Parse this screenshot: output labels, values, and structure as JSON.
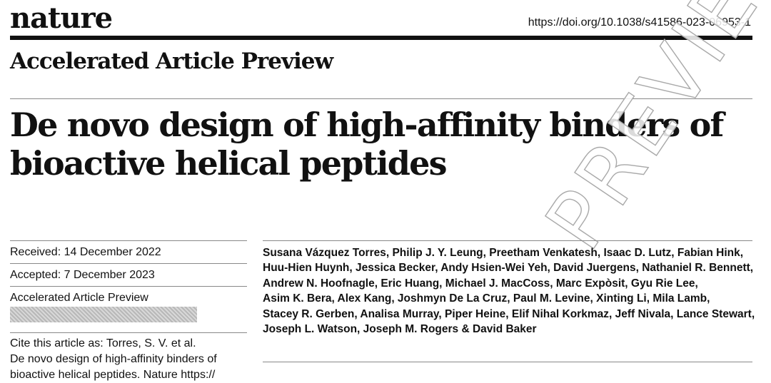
{
  "header": {
    "logo": "nature",
    "doi": "https://doi.org/10.1038/s41586-023-06953-1"
  },
  "banner": "Accelerated Article Preview",
  "title": {
    "line1": "De novo design of high-affinity binders of",
    "line2": "bioactive helical peptides"
  },
  "meta": {
    "received": "Received: 14 December 2022",
    "accepted": "Accepted: 7 December 2023",
    "preview": "Accelerated Article Preview",
    "cite_line1": "Cite this article as: Torres, S. V. et al.",
    "cite_line2": "De novo design of high-affinity binders of",
    "cite_line3": "bioactive helical peptides. Nature https://"
  },
  "authors": [
    "Susana Vázquez Torres, Philip J. Y. Leung, Preetham Venkatesh, Isaac D. Lutz, Fabian Hink,",
    "Huu-Hien Huynh, Jessica Becker, Andy Hsien-Wei Yeh, David Juergens, Nathaniel R. Bennett,",
    "Andrew N. Hoofnagle, Eric Huang, Michael J. MacCoss, Marc Expòsit, Gyu Rie Lee,",
    "Asim K. Bera, Alex Kang, Joshmyn De La Cruz, Paul M. Levine, Xinting Li, Mila Lamb,",
    "Stacey R. Gerben, Analisa Murray, Piper Heine, Elif Nihal Korkmaz, Jeff Nivala, Lance Stewart,",
    "Joseph L. Watson, Joseph M. Rogers & David Baker"
  ],
  "watermark": "PREVIEW"
}
